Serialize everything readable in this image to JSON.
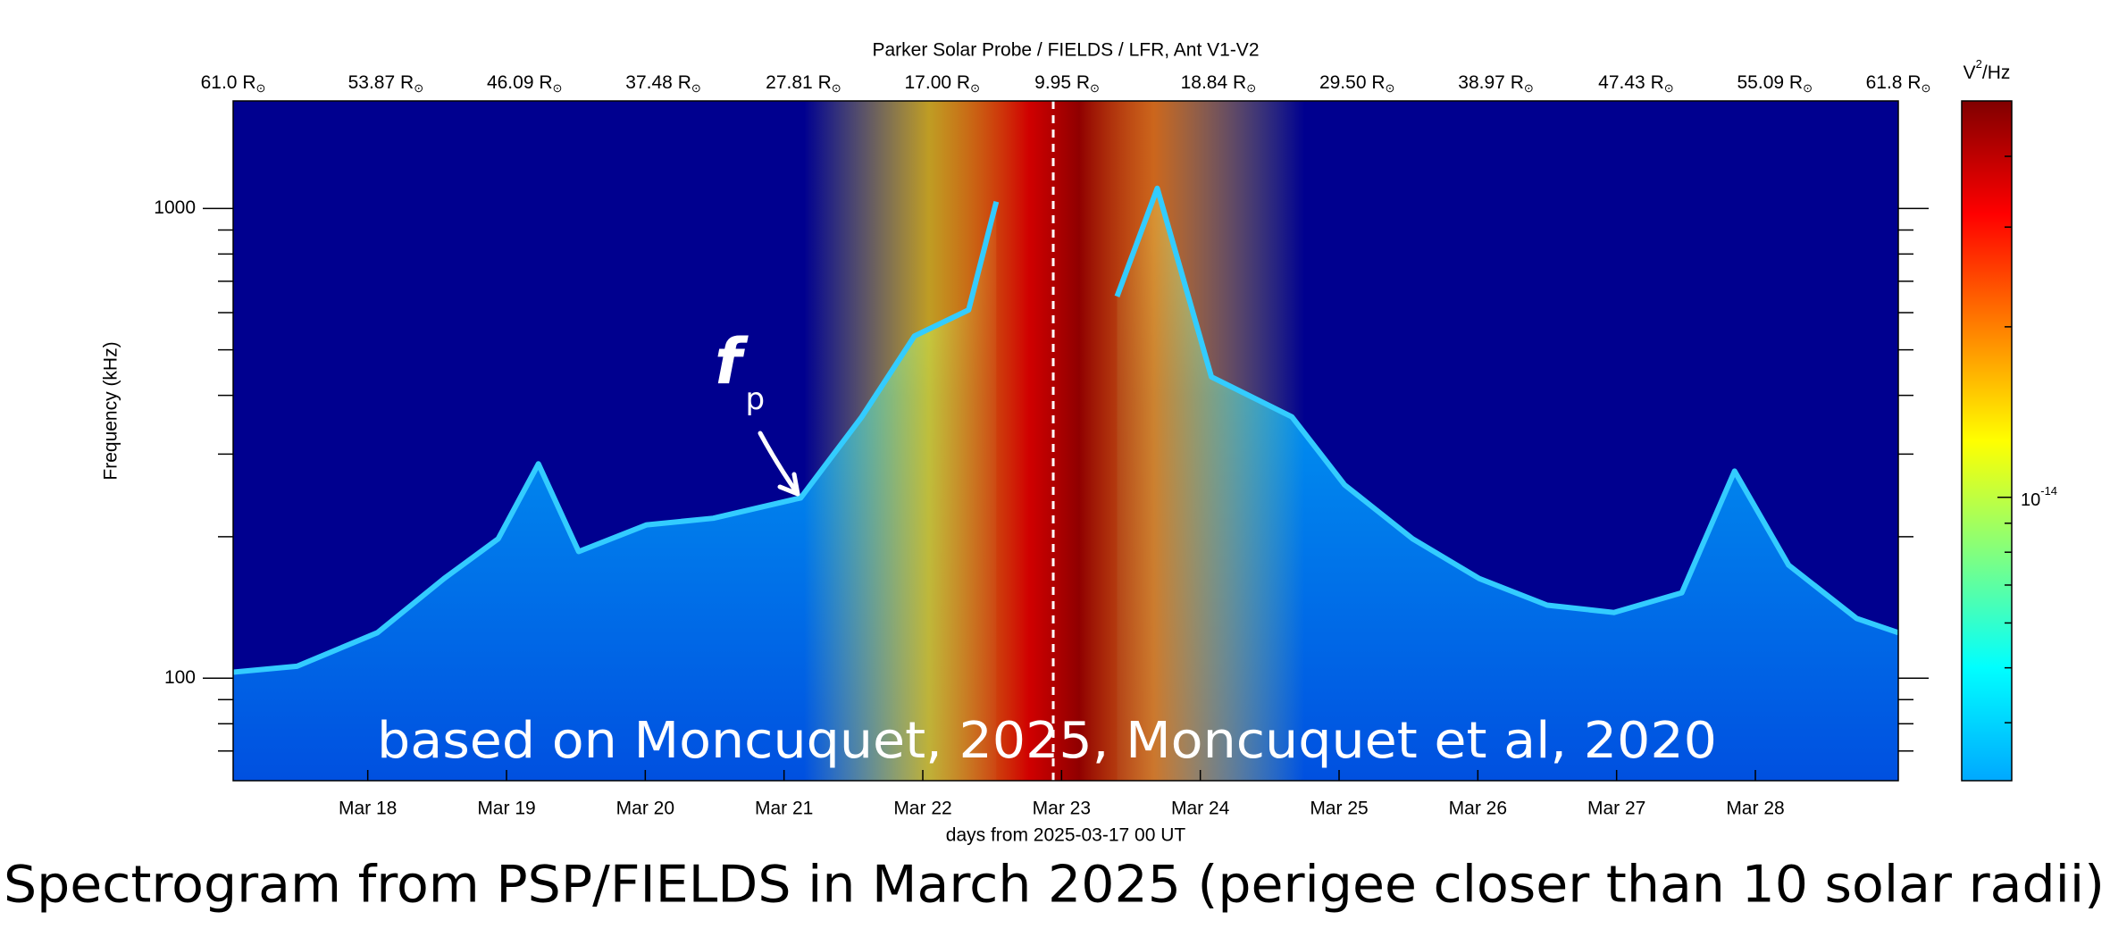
{
  "chart_data": {
    "type": "spectrogram",
    "title": "Parker Solar Probe / FIELDS / LFR, Ant V1-V2",
    "xlabel": "days from 2025-03-17 00 UT",
    "ylabel": "Frequency (kHz)",
    "overlay_text": "based on Moncuquet, 2025, Moncuquet et al, 2020",
    "caption": "Spectrogram from PSP/FIELDS in March 2025 (perigee closer than 10 solar radii)",
    "xlim": [
      0.03,
      12.03
    ],
    "xticks": [
      {
        "value": 1,
        "label": "Mar 18"
      },
      {
        "value": 2,
        "label": "Mar 19"
      },
      {
        "value": 3,
        "label": "Mar 20"
      },
      {
        "value": 4,
        "label": "Mar 21"
      },
      {
        "value": 5,
        "label": "Mar 22"
      },
      {
        "value": 6,
        "label": "Mar 23"
      },
      {
        "value": 7,
        "label": "Mar 24"
      },
      {
        "value": 8,
        "label": "Mar 25"
      },
      {
        "value": 9,
        "label": "Mar 26"
      },
      {
        "value": 10,
        "label": "Mar 27"
      },
      {
        "value": 11,
        "label": "Mar 28"
      }
    ],
    "ylim": [
      60.5,
      1694
    ],
    "yscale": "log",
    "yticks": [
      100,
      1000
    ],
    "yminor_ticks": [
      70,
      80,
      90,
      200,
      300,
      400,
      500,
      600,
      700,
      800,
      900
    ],
    "top_axis": {
      "unit": "R",
      "unit_subscript": "⊙",
      "ticks": [
        {
          "value": 0.03,
          "label": "61.0"
        },
        {
          "value": 1.13,
          "label": "53.87"
        },
        {
          "value": 2.13,
          "label": "46.09"
        },
        {
          "value": 3.13,
          "label": "37.48"
        },
        {
          "value": 4.14,
          "label": "27.81"
        },
        {
          "value": 5.14,
          "label": "17.00"
        },
        {
          "value": 6.04,
          "label": "9.95"
        },
        {
          "value": 7.13,
          "label": "18.84"
        },
        {
          "value": 8.13,
          "label": "29.50"
        },
        {
          "value": 9.13,
          "label": "38.97"
        },
        {
          "value": 10.14,
          "label": "47.43"
        },
        {
          "value": 11.14,
          "label": "55.09"
        },
        {
          "value": 12.03,
          "label": "61.8"
        }
      ]
    },
    "perigee_x": 5.94,
    "x": [
      0.03,
      0.49,
      1.07,
      1.55,
      1.94,
      2.23,
      2.52,
      3.01,
      3.49,
      4.12,
      4.56,
      4.94,
      5.33,
      5.53,
      5.72,
      6.4,
      6.69,
      7.08,
      7.66,
      8.04,
      8.53,
      9.01,
      9.5,
      9.98,
      10.47,
      10.85,
      11.24,
      11.73,
      12.03
    ],
    "series": [
      {
        "color": "#33ccff",
        "values": [
          103,
          106,
          125,
          163,
          198,
          286,
          186,
          212,
          219,
          242,
          360,
          535,
          608,
          1034,
          null,
          650,
          1104,
          438,
          360,
          258,
          198,
          163,
          143,
          138,
          152,
          276,
          174,
          134,
          125
        ]
      }
    ],
    "annotation": {
      "text": "f",
      "subscript": "p"
    },
    "colorbar": {
      "label": "V",
      "label_sup": "2",
      "label_rest": "/Hz",
      "scale": "log",
      "clim": [
        3.16e-15,
        5.01e-14
      ],
      "ticks": [
        {
          "value": 1e-14,
          "label": "10"
        }
      ],
      "tick_exponents": [
        "-14"
      ],
      "minor_ticks": [
        4e-15,
        5e-15,
        6e-15,
        7e-15,
        8e-15,
        9e-15,
        2e-14,
        3e-14,
        4e-14
      ],
      "colormap": [
        "#00a8ff",
        "#00ffff",
        "#80ff80",
        "#ffff00",
        "#ff8000",
        "#ff0000",
        "#800000"
      ]
    }
  }
}
